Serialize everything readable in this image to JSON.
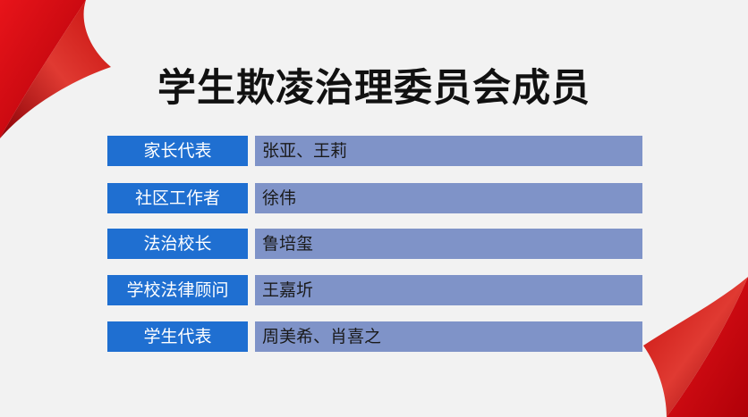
{
  "slide": {
    "title": "学生欺凌治理委员会成员",
    "accent_color": "#e01010",
    "role_color": "#1f6fd1",
    "name_color": "#7f93c8",
    "members": [
      {
        "role": "家长代表",
        "names": "张亚、王莉"
      },
      {
        "role": "社区工作者",
        "names": "徐伟"
      },
      {
        "role": "法治校长",
        "names": "鲁培玺"
      },
      {
        "role": "学校法律顾问",
        "names": "王嘉圻"
      },
      {
        "role": "学生代表",
        "names": "周美希、肖喜之"
      }
    ]
  }
}
